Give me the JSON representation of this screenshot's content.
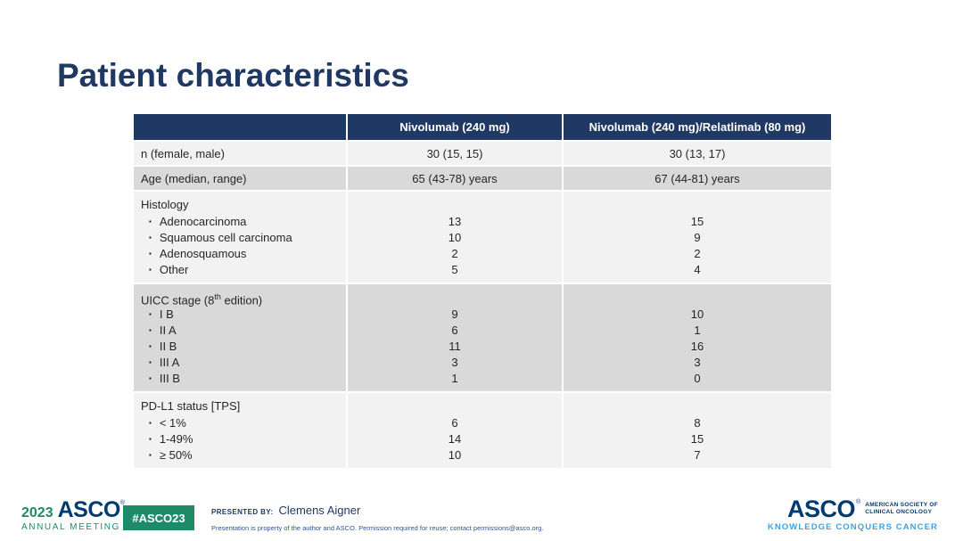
{
  "slide": {
    "title": "Patient characteristics"
  },
  "table": {
    "header": {
      "col1": "",
      "col2": "Nivolumab (240 mg)",
      "col3": "Nivolumab (240 mg)/Relatlimab (80 mg)"
    },
    "rows": {
      "n": {
        "label": "n (female, male)",
        "v1": "30 (15, 15)",
        "v2": "30 (13, 17)"
      },
      "age": {
        "label": "Age (median, range)",
        "v1": "65 (43-78) years",
        "v2": "67 (44-81) years"
      },
      "histology": {
        "label": "Histology",
        "items": [
          {
            "label": "Adenocarcinoma",
            "v1": "13",
            "v2": "15"
          },
          {
            "label": "Squamous cell carcinoma",
            "v1": "10",
            "v2": "9"
          },
          {
            "label": "Adenosquamous",
            "v1": "2",
            "v2": "2"
          },
          {
            "label": "Other",
            "v1": "5",
            "v2": "4"
          }
        ]
      },
      "uicc": {
        "label_pre": "UICC stage (8",
        "label_sup": "th",
        "label_post": " edition)",
        "items": [
          {
            "label": "I B",
            "v1": "9",
            "v2": "10"
          },
          {
            "label": "II A",
            "v1": "6",
            "v2": "1"
          },
          {
            "label": "II B",
            "v1": "11",
            "v2": "16"
          },
          {
            "label": "III A",
            "v1": "3",
            "v2": "3"
          },
          {
            "label": "III B",
            "v1": "1",
            "v2": "0"
          }
        ]
      },
      "pdl1": {
        "label": "PD-L1 status [TPS]",
        "items": [
          {
            "label": "< 1%",
            "v1": "6",
            "v2": "8"
          },
          {
            "label": "1-49%",
            "v1": "14",
            "v2": "15"
          },
          {
            "label": "≥ 50%",
            "v1": "10",
            "v2": "7"
          }
        ]
      }
    }
  },
  "footer": {
    "meeting_year": "2023",
    "meeting_org": "ASCO",
    "meeting_reg": "®",
    "meeting_name": "ANNUAL MEETING",
    "hashtag": "#ASCO23",
    "presented_by_label": "PRESENTED BY:",
    "presenter": "Clemens Aigner",
    "disclaimer": "Presentation is property of the author and ASCO. Permission required for reuse; contact permissions@asco.org.",
    "asco_logo": "ASCO",
    "asco_reg": "®",
    "asco_sub1": "AMERICAN SOCIETY OF",
    "asco_sub2": "CLINICAL ONCOLOGY",
    "asco_tagline": "KNOWLEDGE CONQUERS CANCER"
  },
  "colors": {
    "navy": "#1f3864",
    "asco_navy": "#003b71",
    "green": "#1e8a68",
    "light_blue": "#3ea3dc",
    "row_light": "#f2f2f2",
    "row_medium": "#d9d9d9"
  }
}
